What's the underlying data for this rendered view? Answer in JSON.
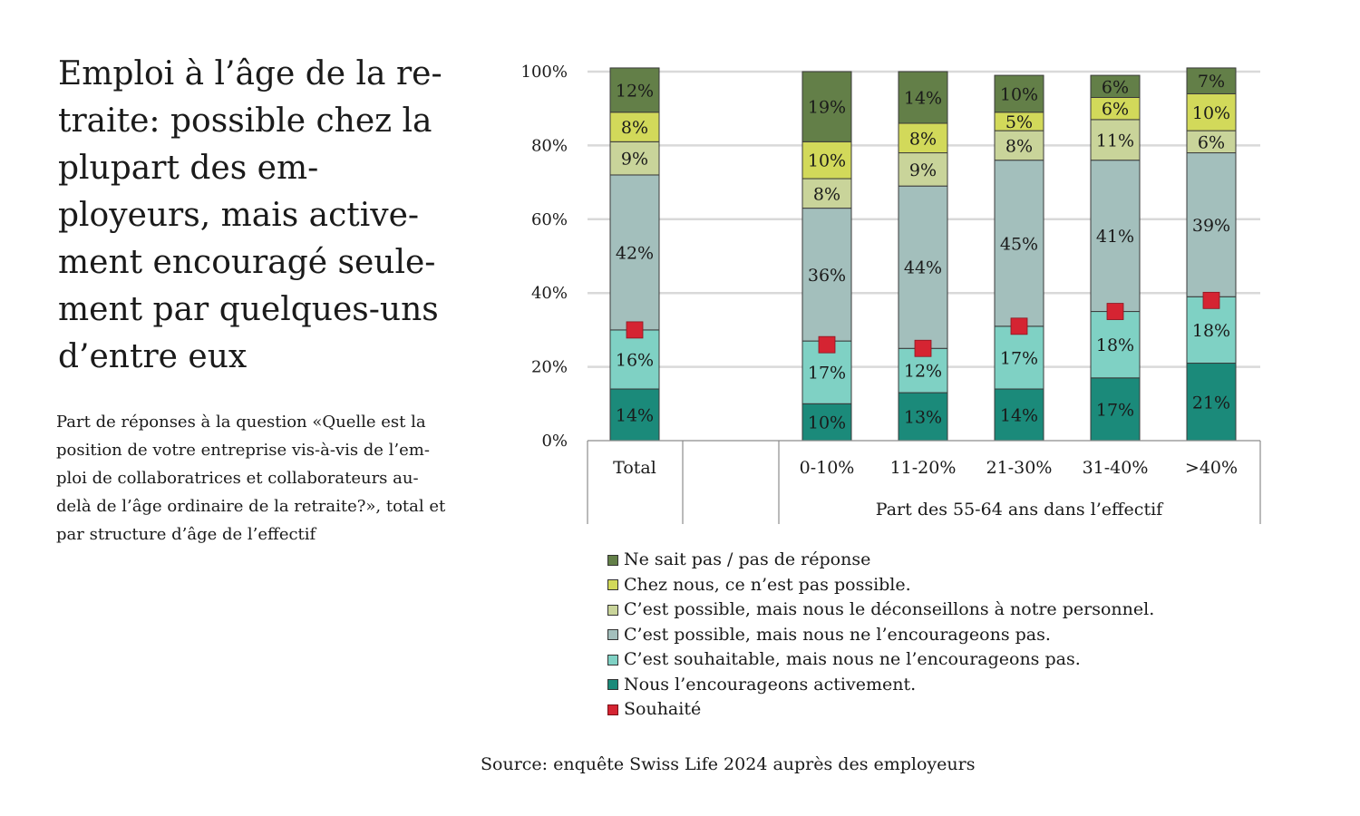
{
  "title": "Emploi à l’âge de la re-\ntraite: possible chez la\nplupart des em-\nployeurs, mais active-\nment encouragé seule-\nment par quelques-uns\nd’entre eux",
  "subtitle": "Part de réponses à la question «Quelle est la\nposition de votre entreprise vis-à-vis de l’em-\nploi de collaboratrices et collaborateurs au-\ndelà de l’âge ordinaire de la retraite?», total et\npar structure d’âge de l’effectif",
  "source": "Source: enquête Swiss Life 2024 auprès des employeurs",
  "chart_data": {
    "type": "bar",
    "stacked": true,
    "categories": [
      "Total",
      "0-10%",
      "11-20%",
      "21-30%",
      "31-40%",
      ">40%"
    ],
    "group_label": "Part des 55-64 ans dans l’effectif",
    "ylim": [
      0,
      100
    ],
    "y_ticks": [
      "0%",
      "20%",
      "40%",
      "60%",
      "80%",
      "100%"
    ],
    "grid": true,
    "legend_position": "bottom",
    "series": [
      {
        "name": "Nous l’encourageons activement.",
        "color": "#1b8a7a",
        "values": [
          14,
          10,
          13,
          14,
          17,
          21
        ],
        "labels": [
          "14%",
          "10%",
          "13%",
          "14%",
          "17%",
          "21%"
        ]
      },
      {
        "name": "C’est souhaitable, mais nous ne l’encourageons pas.",
        "color": "#7fd1c4",
        "values": [
          16,
          17,
          12,
          17,
          18,
          18
        ],
        "labels": [
          "16%",
          "17%",
          "12%",
          "17%",
          "18%",
          "18%"
        ]
      },
      {
        "name": "C’est possible, mais nous ne l’encourageons pas.",
        "color": "#a3bfbc",
        "values": [
          42,
          36,
          44,
          45,
          41,
          39
        ],
        "labels": [
          "42%",
          "36%",
          "44%",
          "45%",
          "41%",
          "39%"
        ]
      },
      {
        "name": "C’est possible, mais nous le déconseillons à notre personnel.",
        "color": "#c9d49a",
        "values": [
          9,
          8,
          9,
          8,
          11,
          6
        ],
        "labels": [
          "9%",
          "8%",
          "9%",
          "8%",
          "11%",
          "6%"
        ]
      },
      {
        "name": "Chez nous, ce n’est pas possible.",
        "color": "#d2d95a",
        "values": [
          8,
          10,
          8,
          5,
          6,
          10
        ],
        "labels": [
          "8%",
          "10%",
          "8%",
          "5%",
          "6%",
          "10%"
        ]
      },
      {
        "name": "Ne sait pas / pas de réponse",
        "color": "#637f48",
        "values": [
          12,
          19,
          14,
          10,
          6,
          7
        ],
        "labels": [
          "12%",
          "19%",
          "14%",
          "10%",
          "6%",
          "7%"
        ]
      }
    ],
    "marker_series": {
      "name": "Souhaité",
      "color": "#d52432",
      "values": [
        30,
        26,
        25,
        31,
        35,
        38
      ]
    }
  }
}
